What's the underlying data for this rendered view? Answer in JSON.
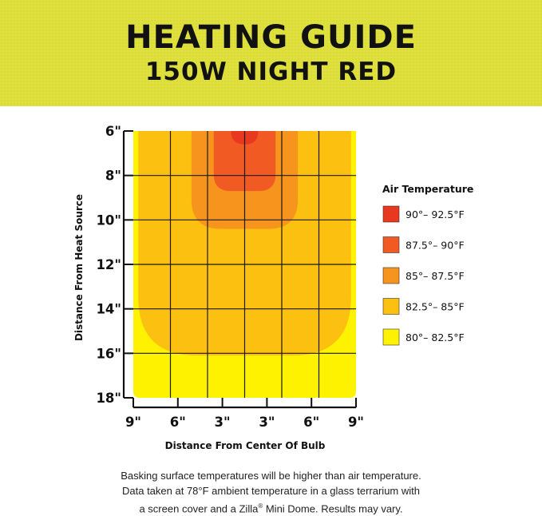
{
  "header": {
    "title": "HEATING GUIDE",
    "subtitle": "150W NIGHT RED",
    "background_color": "#dfe03c"
  },
  "chart_data": {
    "type": "heatmap",
    "title": "HEATING GUIDE",
    "subtitle": "150W NIGHT RED",
    "xlabel": "Distance From Center Of Bulb",
    "ylabel": "Distance From Heat Source",
    "x_tick_labels": [
      "9\"",
      "6\"",
      "3\"",
      "3\"",
      "6\"",
      "9\""
    ],
    "y_tick_labels": [
      "6\"",
      "8\"",
      "10\"",
      "12\"",
      "14\"",
      "16\"",
      "18\""
    ],
    "x_range_inches": [
      -9,
      9
    ],
    "y_range_inches": [
      6,
      18
    ],
    "grid": true,
    "legend_position": "right",
    "legend_title": "Air Temperature",
    "legend": [
      {
        "label": "90°– 92.5°F",
        "color": "#e8381f"
      },
      {
        "label": "87.5°– 90°F",
        "color": "#f15a22"
      },
      {
        "label": "85°– 87.5°F",
        "color": "#f7941d"
      },
      {
        "label": "82.5°– 85°F",
        "color": "#fcc010"
      },
      {
        "label": "80°– 82.5°F",
        "color": "#fff200"
      }
    ],
    "zones": [
      {
        "range": "80°– 82.5°F",
        "x_extent": [
          -9,
          9
        ],
        "y_extent": [
          6,
          18
        ],
        "color": "#fff200"
      },
      {
        "range": "82.5°– 85°F",
        "x_extent": [
          -8.6,
          8.6
        ],
        "y_extent": [
          6,
          16.1
        ],
        "color": "#fcc010"
      },
      {
        "range": "85°– 87.5°F",
        "x_extent": [
          -4.3,
          4.3
        ],
        "y_extent": [
          6,
          10.4
        ],
        "color": "#f7941d"
      },
      {
        "range": "87.5°– 90°F",
        "x_extent": [
          -2.5,
          2.5
        ],
        "y_extent": [
          6,
          8.7
        ],
        "color": "#f15a22"
      },
      {
        "range": "90°– 92.5°F",
        "x_extent": [
          -1.1,
          1.1
        ],
        "y_extent": [
          6,
          6.6
        ],
        "color": "#e8381f"
      }
    ]
  },
  "footnote": {
    "line1": "Basking surface temperatures will be higher than air temperature.",
    "line2": "Data taken at 78°F ambient temperature in a glass terrarium with",
    "line3_pre": "a screen cover and a Zilla",
    "line3_reg": "®",
    "line3_post": " Mini Dome. Results may vary."
  }
}
